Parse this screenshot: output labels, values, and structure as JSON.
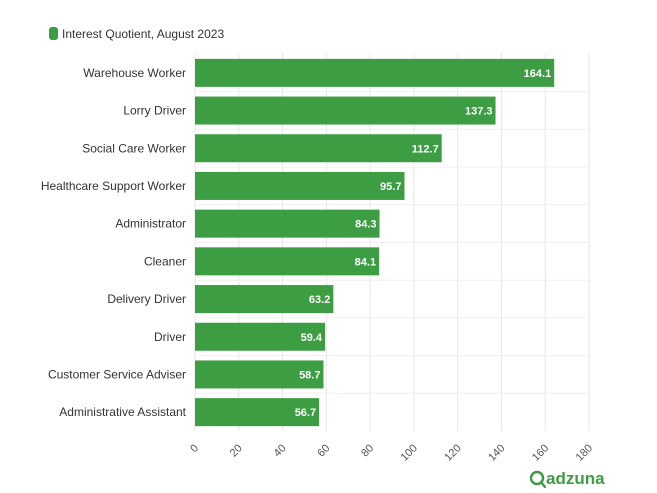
{
  "chart_data": {
    "type": "bar",
    "orientation": "horizontal",
    "categories": [
      "Warehouse Worker",
      "Lorry Driver",
      "Social Care Worker",
      "Healthcare Support Worker",
      "Administrator",
      "Cleaner",
      "Delivery Driver",
      "Driver",
      "Customer Service Adviser",
      "Administrative Assistant"
    ],
    "series": [
      {
        "name": "Interest Quotient, August 2023",
        "values": [
          164.1,
          137.3,
          112.7,
          95.7,
          84.3,
          84.1,
          63.2,
          59.4,
          58.7,
          56.7
        ]
      }
    ],
    "value_labels": [
      "164.1",
      "137.3",
      "112.7",
      "95.7",
      "84.3",
      "84.1",
      "63.2",
      "59.4",
      "58.7",
      "56.7"
    ],
    "xlim": [
      0,
      180
    ],
    "xticks": [
      "0",
      "20",
      "40",
      "60",
      "80",
      "100",
      "120",
      "140",
      "160",
      "180"
    ],
    "grid": true,
    "legend_position": "top-left",
    "bar_color": "#3c9d42"
  },
  "legend": {
    "label": "Interest Quotient, August 2023",
    "color": "#3c9d42"
  },
  "brand": {
    "name": "adzuna",
    "color": "#3c9d42"
  }
}
